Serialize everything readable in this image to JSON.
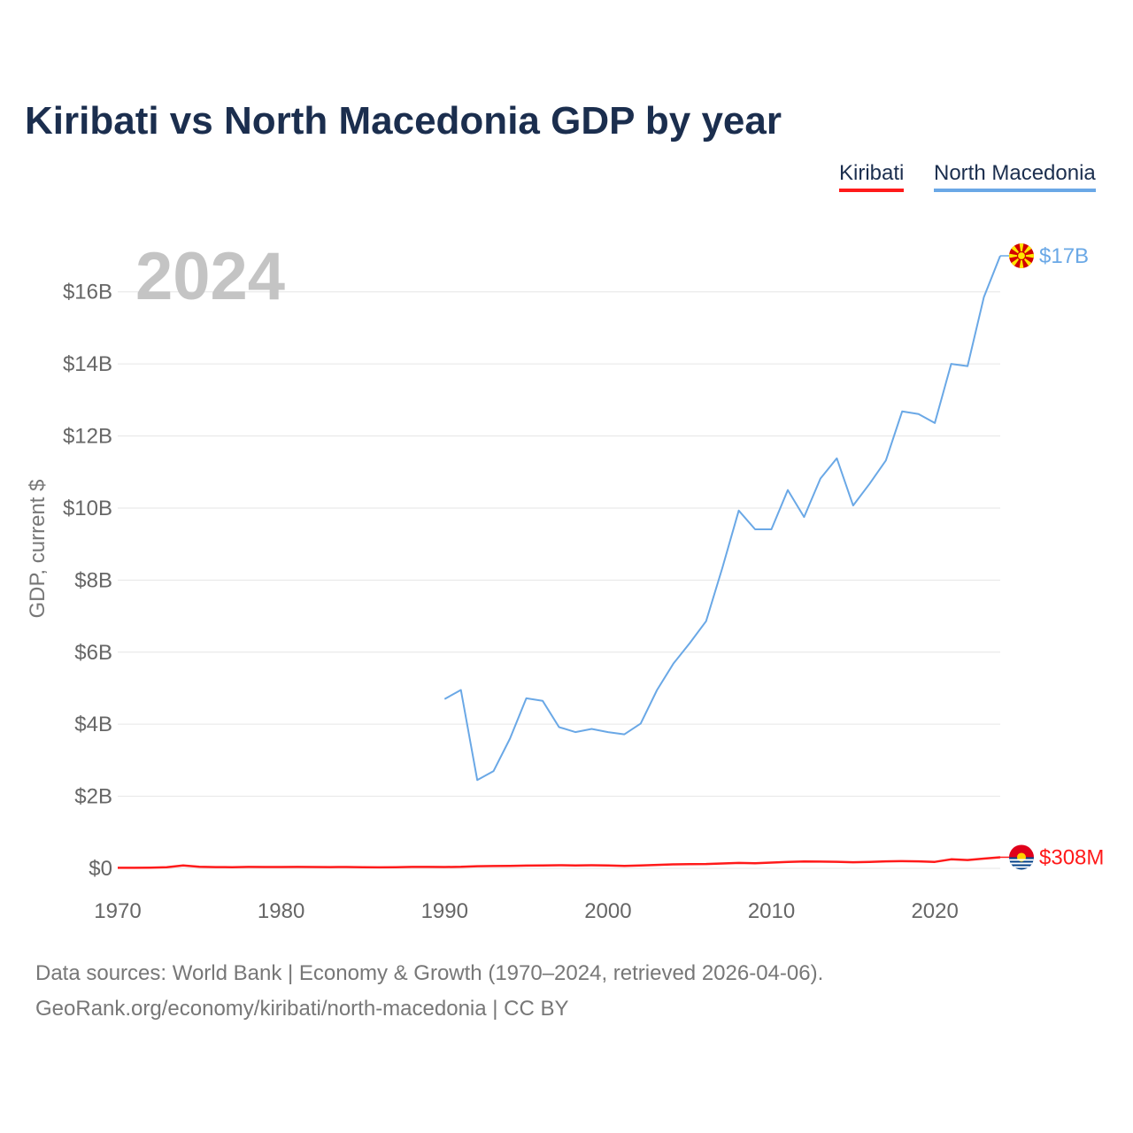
{
  "chart_data": {
    "type": "line",
    "title": "Kiribati vs North Macedonia GDP by year",
    "year_label": "2024",
    "ylabel": "GDP, current $",
    "xlabel": "",
    "xlim": [
      1970,
      2024
    ],
    "ylim": [
      0,
      17000000000
    ],
    "x_ticks": [
      1970,
      1980,
      1990,
      2000,
      2010,
      2020
    ],
    "x_tick_labels": [
      "1970",
      "1980",
      "1990",
      "2000",
      "2010",
      "2020"
    ],
    "y_ticks": [
      0,
      2000000000,
      4000000000,
      6000000000,
      8000000000,
      10000000000,
      12000000000,
      14000000000,
      16000000000
    ],
    "y_tick_labels": [
      "$0",
      "$2B",
      "$4B",
      "$6B",
      "$8B",
      "$10B",
      "$12B",
      "$14B",
      "$16B"
    ],
    "grid": true,
    "legend_position": "top-right",
    "series": [
      {
        "name": "Kiribati",
        "color": "#ff1a1a",
        "end_label": "$308M",
        "flag_icon": "kiribati-flag-icon",
        "x": [
          1970,
          1971,
          1972,
          1973,
          1974,
          1975,
          1976,
          1977,
          1978,
          1979,
          1980,
          1981,
          1982,
          1983,
          1984,
          1985,
          1986,
          1987,
          1988,
          1989,
          1990,
          1991,
          1992,
          1993,
          1994,
          1995,
          1996,
          1997,
          1998,
          1999,
          2000,
          2001,
          2002,
          2003,
          2004,
          2005,
          2006,
          2007,
          2008,
          2009,
          2010,
          2011,
          2012,
          2013,
          2014,
          2015,
          2016,
          2017,
          2018,
          2019,
          2020,
          2021,
          2022,
          2023,
          2024
        ],
        "values": [
          14000000,
          15000000,
          19000000,
          33000000,
          80000000,
          45000000,
          34000000,
          32000000,
          40000000,
          38000000,
          36000000,
          40000000,
          37000000,
          35000000,
          38000000,
          30000000,
          28000000,
          33000000,
          40000000,
          39000000,
          38000000,
          42000000,
          60000000,
          63000000,
          70000000,
          75000000,
          82000000,
          86000000,
          80000000,
          85000000,
          80000000,
          70000000,
          78000000,
          95000000,
          110000000,
          118000000,
          120000000,
          135000000,
          150000000,
          140000000,
          160000000,
          178000000,
          190000000,
          186000000,
          182000000,
          170000000,
          180000000,
          195000000,
          200000000,
          195000000,
          180000000,
          250000000,
          230000000,
          270000000,
          308000000
        ]
      },
      {
        "name": "North Macedonia",
        "color": "#6aa8e6",
        "end_label": "$17B",
        "flag_icon": "north-macedonia-flag-icon",
        "x": [
          1990,
          1991,
          1992,
          1993,
          1994,
          1995,
          1996,
          1997,
          1998,
          1999,
          2000,
          2001,
          2002,
          2003,
          2004,
          2005,
          2006,
          2007,
          2008,
          2009,
          2010,
          2011,
          2012,
          2013,
          2014,
          2015,
          2016,
          2017,
          2018,
          2019,
          2020,
          2021,
          2022,
          2023,
          2024
        ],
        "values": [
          4700000000,
          4950000000,
          2450000000,
          2700000000,
          3600000000,
          4720000000,
          4650000000,
          3920000000,
          3780000000,
          3870000000,
          3780000000,
          3720000000,
          4020000000,
          4950000000,
          5680000000,
          6250000000,
          6860000000,
          8340000000,
          9930000000,
          9410000000,
          9410000000,
          10500000000,
          9750000000,
          10820000000,
          11380000000,
          10070000000,
          10670000000,
          11320000000,
          12680000000,
          12610000000,
          12360000000,
          14000000000,
          13940000000,
          15850000000,
          17000000000
        ]
      }
    ]
  },
  "legend": {
    "kiribati_label": "Kiribati",
    "north_macedonia_label": "North Macedonia"
  },
  "footer": {
    "source_line1": "Data sources: World Bank | Economy & Growth (1970–2024, retrieved 2026-04-06).",
    "source_line2": "GeoRank.org/economy/kiribati/north-macedonia | CC BY"
  }
}
